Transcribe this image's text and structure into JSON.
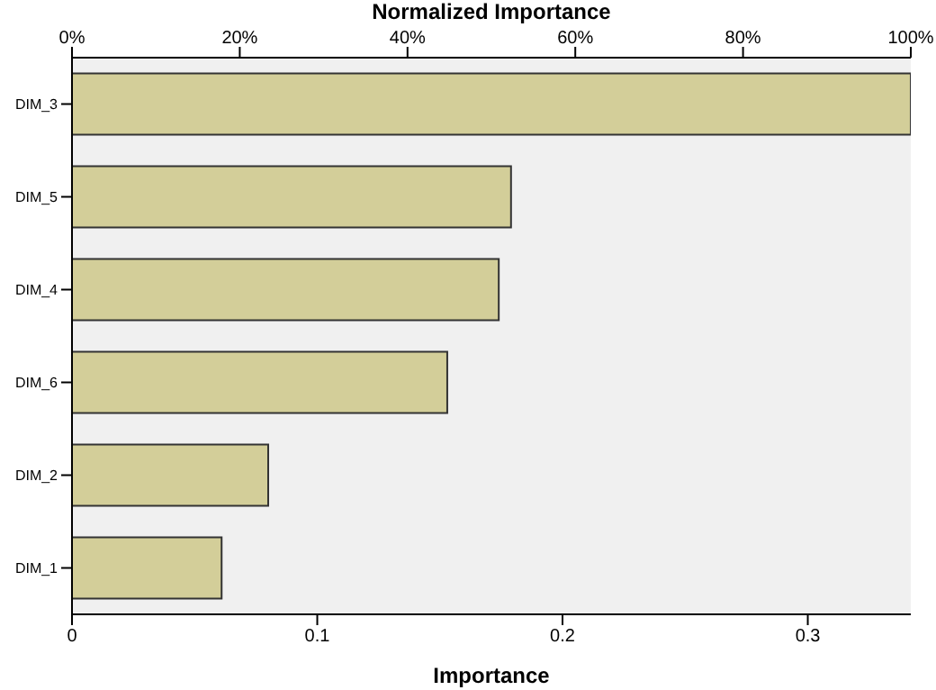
{
  "chart_data": {
    "type": "bar",
    "orientation": "horizontal",
    "xlabel": "Importance",
    "x2label": "Normalized Importance",
    "categories": [
      "DIM_3",
      "DIM_5",
      "DIM_4",
      "DIM_6",
      "DIM_2",
      "DIM_1"
    ],
    "values": [
      0.342,
      0.179,
      0.174,
      0.153,
      0.08,
      0.061
    ],
    "color": "#d3ce99",
    "xlim": [
      0,
      0.342
    ],
    "xticks": [
      0,
      0.1,
      0.2,
      0.3
    ],
    "x2lim": [
      0,
      100
    ],
    "x2ticks": [
      {
        "value": 0,
        "label": "0%"
      },
      {
        "value": 20,
        "label": "20%"
      },
      {
        "value": 40,
        "label": "40%"
      },
      {
        "value": 60,
        "label": "60%"
      },
      {
        "value": 80,
        "label": "80%"
      },
      {
        "value": 100,
        "label": "100%"
      }
    ],
    "grid": false,
    "legend": false
  }
}
